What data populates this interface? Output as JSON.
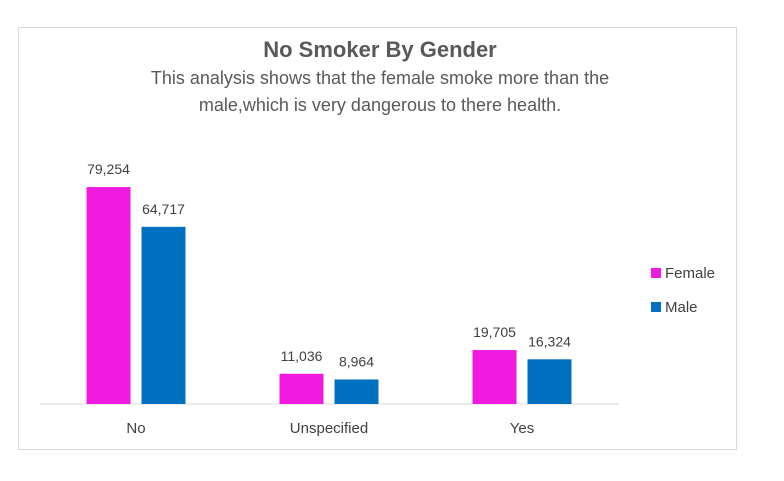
{
  "chart_data": {
    "type": "bar",
    "title": "No Smoker By Gender",
    "subtitle_lines": [
      "This analysis shows that the female smoke more than the",
      "male,which is very dangerous to there health."
    ],
    "categories": [
      "No",
      "Unspecified",
      "Yes"
    ],
    "series": [
      {
        "name": "Female",
        "color": "#f01ae0",
        "values": [
          79254,
          11036,
          19705
        ],
        "labels": [
          "79,254",
          "11,036",
          "19,705"
        ]
      },
      {
        "name": "Male",
        "color": "#0070c0",
        "values": [
          64717,
          8964,
          16324
        ],
        "labels": [
          "64,717",
          "8,964",
          "16,324"
        ]
      }
    ],
    "ylim": [
      0,
      80000
    ],
    "grid": false,
    "legend_position": "right",
    "xlabel": "",
    "ylabel": ""
  }
}
